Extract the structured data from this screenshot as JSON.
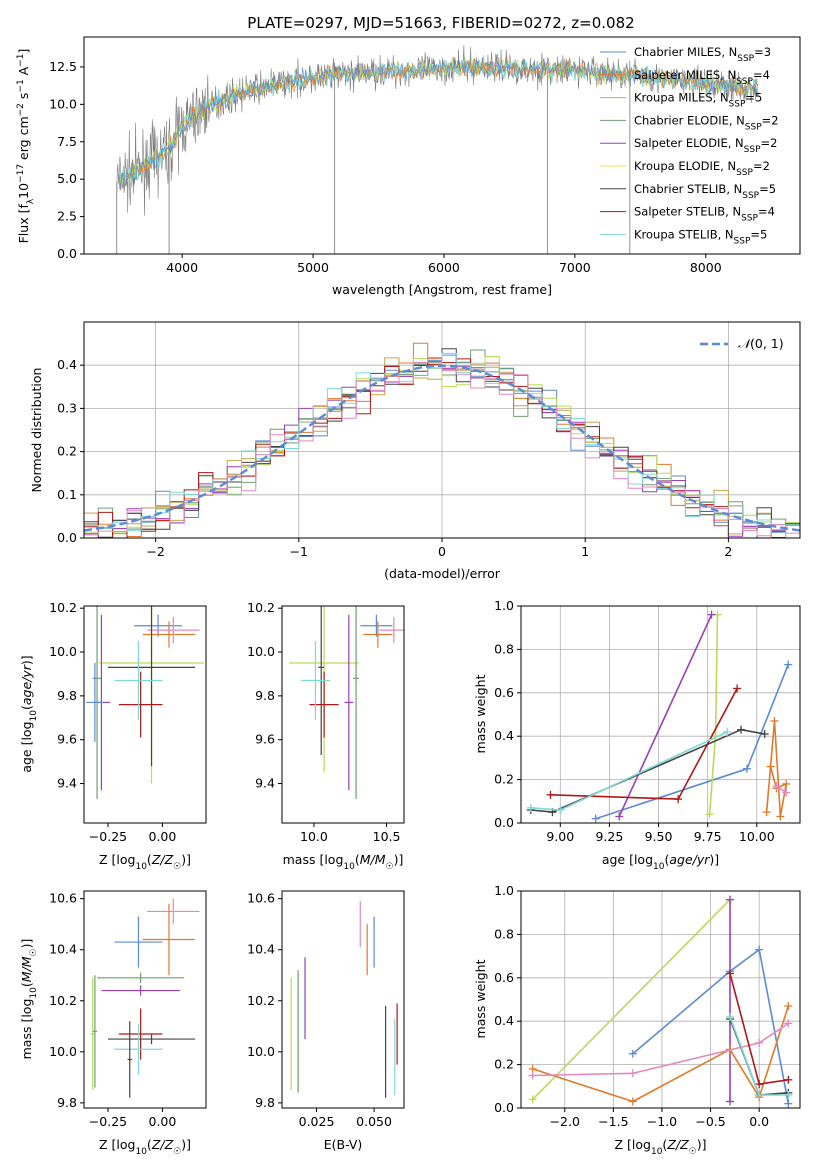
{
  "page": {
    "title": "PLATE=0297, MJD=51663, FIBERID=0272, z=0.082"
  },
  "colors": {
    "chabrier_miles": "#5b8bd6",
    "salpeter_miles": "#e07a2a",
    "kroupa_miles": "#c7a24a",
    "chabrier_elodie": "#6f9f6f",
    "salpeter_elodie": "#9b3fb8",
    "kroupa_elodie": "#e6e056",
    "chabrier_stelib": "#444444",
    "salpeter_stelib": "#b01818",
    "kroupa_stelib": "#7fd8d8",
    "pink": "#e389c1",
    "lime": "#b8dc5a",
    "data": "#7a7a7a",
    "normal": "#5b8bd6",
    "grid": "#b0b0b0"
  },
  "chart_data": [
    {
      "id": "spectrum",
      "type": "line",
      "title": "PLATE=0297, MJD=51663, FIBERID=0272, z=0.082",
      "xlabel": "wavelength [Angstrom, rest frame]",
      "ylabel": "Flux [f_λ 10^-17 erg cm^-2 s^-1 A^-1]",
      "xlim": [
        3250,
        8720
      ],
      "ylim": [
        0,
        14.5
      ],
      "xticks": [
        "4000",
        "5000",
        "6000",
        "7000",
        "8000"
      ],
      "yticks": [
        "0.0",
        "2.5",
        "5.0",
        "7.5",
        "10.0",
        "12.5"
      ],
      "grid": false,
      "legend_position": "top-right",
      "continuum": [
        [
          3500,
          4.8
        ],
        [
          3700,
          5.8
        ],
        [
          3900,
          7.0
        ],
        [
          4000,
          8.6
        ],
        [
          4200,
          9.9
        ],
        [
          4400,
          10.6
        ],
        [
          4600,
          11.1
        ],
        [
          4800,
          11.5
        ],
        [
          5000,
          11.8
        ],
        [
          5200,
          12.0
        ],
        [
          5400,
          12.1
        ],
        [
          5600,
          12.2
        ],
        [
          5800,
          12.3
        ],
        [
          6000,
          12.4
        ],
        [
          6200,
          12.5
        ],
        [
          6400,
          12.5
        ],
        [
          6600,
          12.4
        ],
        [
          6800,
          12.3
        ],
        [
          7000,
          12.3
        ],
        [
          7200,
          12.1
        ],
        [
          7400,
          12.0
        ],
        [
          7600,
          11.8
        ],
        [
          7800,
          11.6
        ],
        [
          8000,
          11.4
        ],
        [
          8200,
          11.2
        ],
        [
          8400,
          11.0
        ]
      ],
      "legend": [
        {
          "label": "Chabrier MILES, N_SSP=3",
          "color": "chabrier_miles",
          "main": "Chabrier MILES, N",
          "sub": "SSP",
          "tail": "=3"
        },
        {
          "label": "Salpeter MILES, N_SSP=4",
          "color": "salpeter_miles",
          "main": "Salpeter MILES, N",
          "sub": "SSP",
          "tail": "=4"
        },
        {
          "label": "Kroupa MILES, N_SSP=5",
          "color": "kroupa_miles",
          "main": "Kroupa MILES, N",
          "sub": "SSP",
          "tail": "=5"
        },
        {
          "label": "Chabrier ELODIE, N_SSP=2",
          "color": "chabrier_elodie",
          "main": "Chabrier ELODIE, N",
          "sub": "SSP",
          "tail": "=2"
        },
        {
          "label": "Salpeter ELODIE, N_SSP=2",
          "color": "salpeter_elodie",
          "main": "Salpeter ELODIE, N",
          "sub": "SSP",
          "tail": "=2"
        },
        {
          "label": "Kroupa ELODIE, N_SSP=2",
          "color": "kroupa_elodie",
          "main": "Kroupa ELODIE, N",
          "sub": "SSP",
          "tail": "=2"
        },
        {
          "label": "Chabrier STELIB, N_SSP=5",
          "color": "chabrier_stelib",
          "main": "Chabrier STELIB, N",
          "sub": "SSP",
          "tail": "=5"
        },
        {
          "label": "Salpeter STELIB, N_SSP=4",
          "color": "salpeter_stelib",
          "main": "Salpeter STELIB, N",
          "sub": "SSP",
          "tail": "=4"
        },
        {
          "label": "Kroupa STELIB, N_SSP=5",
          "color": "kroupa_stelib",
          "main": "Kroupa STELIB, N",
          "sub": "SSP",
          "tail": "=5"
        }
      ]
    },
    {
      "id": "residuals",
      "type": "area",
      "xlabel": "(data-model)/error",
      "ylabel": "Normed distribution",
      "xlim": [
        -2.5,
        2.5
      ],
      "ylim": [
        0,
        0.5
      ],
      "xticks": [
        -2,
        -1,
        0,
        1,
        2
      ],
      "yticks": [
        0.0,
        0.1,
        0.2,
        0.3,
        0.4
      ],
      "grid": true,
      "legend": [
        {
          "label": "N(0,1)",
          "color": "normal",
          "style": "dashed"
        }
      ],
      "legend_position": "top-right",
      "bins": 50,
      "normal_curve": {
        "mean": 0,
        "sigma": 1
      }
    },
    {
      "id": "age_vs_Z",
      "type": "scatter",
      "xlabel": "Z [log10(Z/Z☉)]",
      "ylabel": "age [log10(age/yr)]",
      "xlim": [
        -0.36,
        0.2
      ],
      "ylim": [
        9.22,
        10.21
      ],
      "xticks": [
        "−0.25",
        "0.00"
      ],
      "xtick_values": [
        -0.25,
        0.0
      ],
      "yticks": [
        "9.4",
        "9.6",
        "9.8",
        "10.0",
        "10.2"
      ],
      "ytick_values": [
        9.4,
        9.6,
        9.8,
        10.0,
        10.2
      ],
      "points": [
        {
          "color": "chabrier_miles",
          "x": -0.02,
          "xerr": 0.11,
          "y": 10.12,
          "yerr": 0.05
        },
        {
          "color": "salpeter_miles",
          "x": 0.03,
          "xerr": 0.12,
          "y": 10.08,
          "yerr": 0.06
        },
        {
          "color": "pink",
          "x": 0.05,
          "xerr": 0.12,
          "y": 10.1,
          "yerr": 0.06
        },
        {
          "color": "lime",
          "x": -0.05,
          "xerr": 0.24,
          "y": 9.95,
          "yerr": 0.55
        },
        {
          "color": "chabrier_elodie",
          "x": -0.3,
          "xerr": 0.02,
          "y": 9.88,
          "yerr": 0.55
        },
        {
          "color": "salpeter_elodie",
          "x": -0.28,
          "xerr": 0.04,
          "y": 9.77,
          "yerr": 0.4
        },
        {
          "color": "chabrier_stelib",
          "x": -0.05,
          "xerr": 0.2,
          "y": 9.93,
          "yerr": 0.45
        },
        {
          "color": "salpeter_stelib",
          "x": -0.1,
          "xerr": 0.1,
          "y": 9.76,
          "yerr": 0.15
        },
        {
          "color": "kroupa_stelib",
          "x": -0.11,
          "xerr": 0.11,
          "y": 9.87,
          "yerr": 0.18
        },
        {
          "color": "chabrier_miles",
          "x": -0.31,
          "xerr": 0.04,
          "y": 9.77,
          "yerr": 0.18
        }
      ]
    },
    {
      "id": "age_vs_mass",
      "type": "scatter",
      "xlabel": "mass [log10(M/M☉)]",
      "xlim": [
        9.78,
        10.62
      ],
      "ylim": [
        9.22,
        10.21
      ],
      "xticks": [
        "10.0",
        "10.5"
      ],
      "xtick_values": [
        10.0,
        10.5
      ],
      "yticks": [
        "9.4",
        "9.6",
        "9.8",
        "10.0",
        "10.2"
      ],
      "ytick_values": [
        9.4,
        9.6,
        9.8,
        10.0,
        10.2
      ],
      "points": [
        {
          "color": "chabrier_miles",
          "x": 10.43,
          "xerr": 0.11,
          "y": 10.12,
          "yerr": 0.05
        },
        {
          "color": "salpeter_miles",
          "x": 10.44,
          "xerr": 0.1,
          "y": 10.08,
          "yerr": 0.06
        },
        {
          "color": "pink",
          "x": 10.55,
          "xerr": 0.1,
          "y": 10.1,
          "yerr": 0.06
        },
        {
          "color": "lime",
          "x": 10.07,
          "xerr": 0.24,
          "y": 9.95,
          "yerr": 0.5
        },
        {
          "color": "chabrier_elodie",
          "x": 10.29,
          "xerr": 0.02,
          "y": 9.88,
          "yerr": 0.55
        },
        {
          "color": "salpeter_elodie",
          "x": 10.24,
          "xerr": 0.03,
          "y": 9.77,
          "yerr": 0.4
        },
        {
          "color": "chabrier_stelib",
          "x": 10.05,
          "xerr": 0.02,
          "y": 9.93,
          "yerr": 0.4
        },
        {
          "color": "salpeter_stelib",
          "x": 10.07,
          "xerr": 0.1,
          "y": 9.76,
          "yerr": 0.15
        },
        {
          "color": "kroupa_stelib",
          "x": 10.01,
          "xerr": 0.1,
          "y": 9.87,
          "yerr": 0.18
        }
      ]
    },
    {
      "id": "weight_vs_age",
      "type": "line",
      "xlabel": "age [log10(age/yr)]",
      "ylabel": "mass weight",
      "xlim": [
        8.8,
        10.22
      ],
      "ylim": [
        0,
        1
      ],
      "xticks": [
        "9.00",
        "9.25",
        "9.50",
        "9.75",
        "10.00"
      ],
      "xtick_values": [
        9.0,
        9.25,
        9.5,
        9.75,
        10.0
      ],
      "yticks": [
        "0.0",
        "0.2",
        "0.4",
        "0.6",
        "0.8",
        "1.0"
      ],
      "ytick_values": [
        0,
        0.2,
        0.4,
        0.6,
        0.8,
        1.0
      ],
      "grid": true,
      "series": [
        {
          "color": "chabrier_miles",
          "x": [
            9.18,
            9.95,
            10.16
          ],
          "y": [
            0.02,
            0.25,
            0.73
          ]
        },
        {
          "color": "salpeter_miles",
          "x": [
            10.05,
            10.09,
            10.12,
            10.15,
            10.1,
            10.07
          ],
          "y": [
            0.05,
            0.47,
            0.03,
            0.18,
            0.16,
            0.26
          ]
        },
        {
          "color": "pink",
          "x": [
            10.1,
            10.15
          ],
          "y": [
            0.17,
            0.14
          ]
        },
        {
          "color": "lime",
          "x": [
            9.76,
            9.79,
            9.8
          ],
          "y": [
            0.04,
            0.4,
            0.96
          ]
        },
        {
          "color": "salpeter_elodie",
          "x": [
            9.3,
            9.77
          ],
          "y": [
            0.03,
            0.96
          ]
        },
        {
          "color": "salpeter_stelib",
          "x": [
            8.95,
            9.6,
            9.9
          ],
          "y": [
            0.13,
            0.11,
            0.62
          ]
        },
        {
          "color": "chabrier_stelib",
          "x": [
            8.85,
            8.96,
            9.92,
            10.04
          ],
          "y": [
            0.06,
            0.05,
            0.43,
            0.41
          ]
        },
        {
          "color": "kroupa_stelib",
          "x": [
            8.85,
            9.0,
            9.85
          ],
          "y": [
            0.07,
            0.06,
            0.42
          ]
        }
      ]
    },
    {
      "id": "mass_vs_Z",
      "type": "scatter",
      "xlabel": "Z [log10(Z/Z☉)]",
      "ylabel": "mass [log10(M/M☉)]",
      "xlim": [
        -0.36,
        0.2
      ],
      "ylim": [
        9.78,
        10.63
      ],
      "xticks": [
        "−0.25",
        "0.00"
      ],
      "xtick_values": [
        -0.25,
        0.0
      ],
      "yticks": [
        "9.8",
        "10.0",
        "10.2",
        "10.4",
        "10.6"
      ],
      "ytick_values": [
        9.8,
        10.0,
        10.2,
        10.4,
        10.6
      ],
      "points": [
        {
          "color": "pink",
          "x": 0.05,
          "xerr": 0.12,
          "y": 10.55,
          "yerr": 0.05
        },
        {
          "color": "chabrier_miles",
          "x": -0.11,
          "xerr": 0.11,
          "y": 10.43,
          "yerr": 0.1
        },
        {
          "color": "salpeter_miles",
          "x": 0.03,
          "xerr": 0.12,
          "y": 10.44,
          "yerr": 0.14
        },
        {
          "color": "lime",
          "x": -0.32,
          "xerr": 0.01,
          "y": 10.07,
          "yerr": 0.22
        },
        {
          "color": "chabrier_elodie",
          "x": -0.1,
          "xerr": 0.2,
          "y": 10.29,
          "yerr": 0.02
        },
        {
          "color": "salpeter_elodie",
          "x": -0.1,
          "xerr": 0.18,
          "y": 10.24,
          "yerr": 0.02
        },
        {
          "color": "chabrier_stelib",
          "x": -0.05,
          "xerr": 0.2,
          "y": 10.05,
          "yerr": 0.02
        },
        {
          "color": "salpeter_stelib",
          "x": -0.1,
          "xerr": 0.1,
          "y": 10.07,
          "yerr": 0.1
        },
        {
          "color": "kroupa_stelib",
          "x": -0.11,
          "xerr": 0.11,
          "y": 10.01,
          "yerr": 0.1
        },
        {
          "color": "chabrier_stelib",
          "x": -0.15,
          "xerr": 0.01,
          "y": 9.97,
          "yerr": 0.15
        },
        {
          "color": "chabrier_elodie",
          "x": -0.31,
          "xerr": 0.01,
          "y": 10.08,
          "yerr": 0.22
        }
      ]
    },
    {
      "id": "mass_vs_EBV",
      "type": "scatter",
      "xlabel": "E(B-V)",
      "xlim": [
        0.01,
        0.063
      ],
      "ylim": [
        9.78,
        10.63
      ],
      "xticks": [
        "0.025",
        "0.050"
      ],
      "xtick_values": [
        0.025,
        0.05
      ],
      "yticks": [
        "9.8",
        "10.0",
        "10.2",
        "10.4",
        "10.6"
      ],
      "ytick_values": [
        9.8,
        10.0,
        10.2,
        10.4,
        10.6
      ],
      "points": [
        {
          "color": "pink",
          "x": 0.044,
          "xerr": 0,
          "y": 10.5,
          "yerr": 0.09
        },
        {
          "color": "salpeter_miles",
          "x": 0.047,
          "xerr": 0,
          "y": 10.4,
          "yerr": 0.1
        },
        {
          "color": "chabrier_miles",
          "x": 0.05,
          "xerr": 0,
          "y": 10.43,
          "yerr": 0.1
        },
        {
          "color": "lime",
          "x": 0.014,
          "xerr": 0,
          "y": 10.07,
          "yerr": 0.22
        },
        {
          "color": "chabrier_elodie",
          "x": 0.017,
          "xerr": 0,
          "y": 10.08,
          "yerr": 0.24
        },
        {
          "color": "salpeter_elodie",
          "x": 0.02,
          "xerr": 0,
          "y": 10.21,
          "yerr": 0.16
        },
        {
          "color": "chabrier_stelib",
          "x": 0.055,
          "xerr": 0,
          "y": 10.0,
          "yerr": 0.18
        },
        {
          "color": "salpeter_stelib",
          "x": 0.06,
          "xerr": 0,
          "y": 10.07,
          "yerr": 0.12
        },
        {
          "color": "kroupa_stelib",
          "x": 0.059,
          "xerr": 0,
          "y": 9.98,
          "yerr": 0.15
        }
      ]
    },
    {
      "id": "weight_vs_Z",
      "type": "line",
      "xlabel": "Z [log10(Z/Z☉)]",
      "ylabel": "mass weight",
      "xlim": [
        -2.45,
        0.42
      ],
      "ylim": [
        0,
        1
      ],
      "xticks": [
        "−2.0",
        "−1.5",
        "−1.0",
        "−0.5",
        "0.0"
      ],
      "xtick_values": [
        -2.0,
        -1.5,
        -1.0,
        -0.5,
        0.0
      ],
      "yticks": [
        "0.0",
        "0.2",
        "0.4",
        "0.6",
        "0.8",
        "1.0"
      ],
      "ytick_values": [
        0,
        0.2,
        0.4,
        0.6,
        0.8,
        1.0
      ],
      "grid": true,
      "series": [
        {
          "color": "lime",
          "x": [
            -2.33,
            -0.3
          ],
          "y": [
            0.04,
            0.96
          ]
        },
        {
          "color": "salpeter_elodie",
          "x": [
            -0.3,
            -0.3
          ],
          "y": [
            0.03,
            0.96
          ]
        },
        {
          "color": "chabrier_miles",
          "x": [
            -1.3,
            -0.3,
            0.0,
            0.3
          ],
          "y": [
            0.25,
            0.63,
            0.73,
            0.02
          ]
        },
        {
          "color": "salpeter_miles",
          "x": [
            -2.33,
            -1.3,
            -0.3,
            0.0,
            0.3
          ],
          "y": [
            0.18,
            0.03,
            0.27,
            0.05,
            0.47
          ]
        },
        {
          "color": "pink",
          "x": [
            -2.33,
            -1.3,
            0.0,
            0.3
          ],
          "y": [
            0.15,
            0.16,
            0.3,
            0.39
          ]
        },
        {
          "color": "salpeter_stelib",
          "x": [
            -0.3,
            0.0,
            0.3
          ],
          "y": [
            0.62,
            0.11,
            0.13
          ]
        },
        {
          "color": "chabrier_stelib",
          "x": [
            -0.3,
            0.0,
            0.3
          ],
          "y": [
            0.41,
            0.06,
            0.07
          ]
        },
        {
          "color": "kroupa_stelib",
          "x": [
            -0.3,
            0.0,
            0.3
          ],
          "y": [
            0.42,
            0.06,
            0.06
          ]
        }
      ]
    }
  ]
}
